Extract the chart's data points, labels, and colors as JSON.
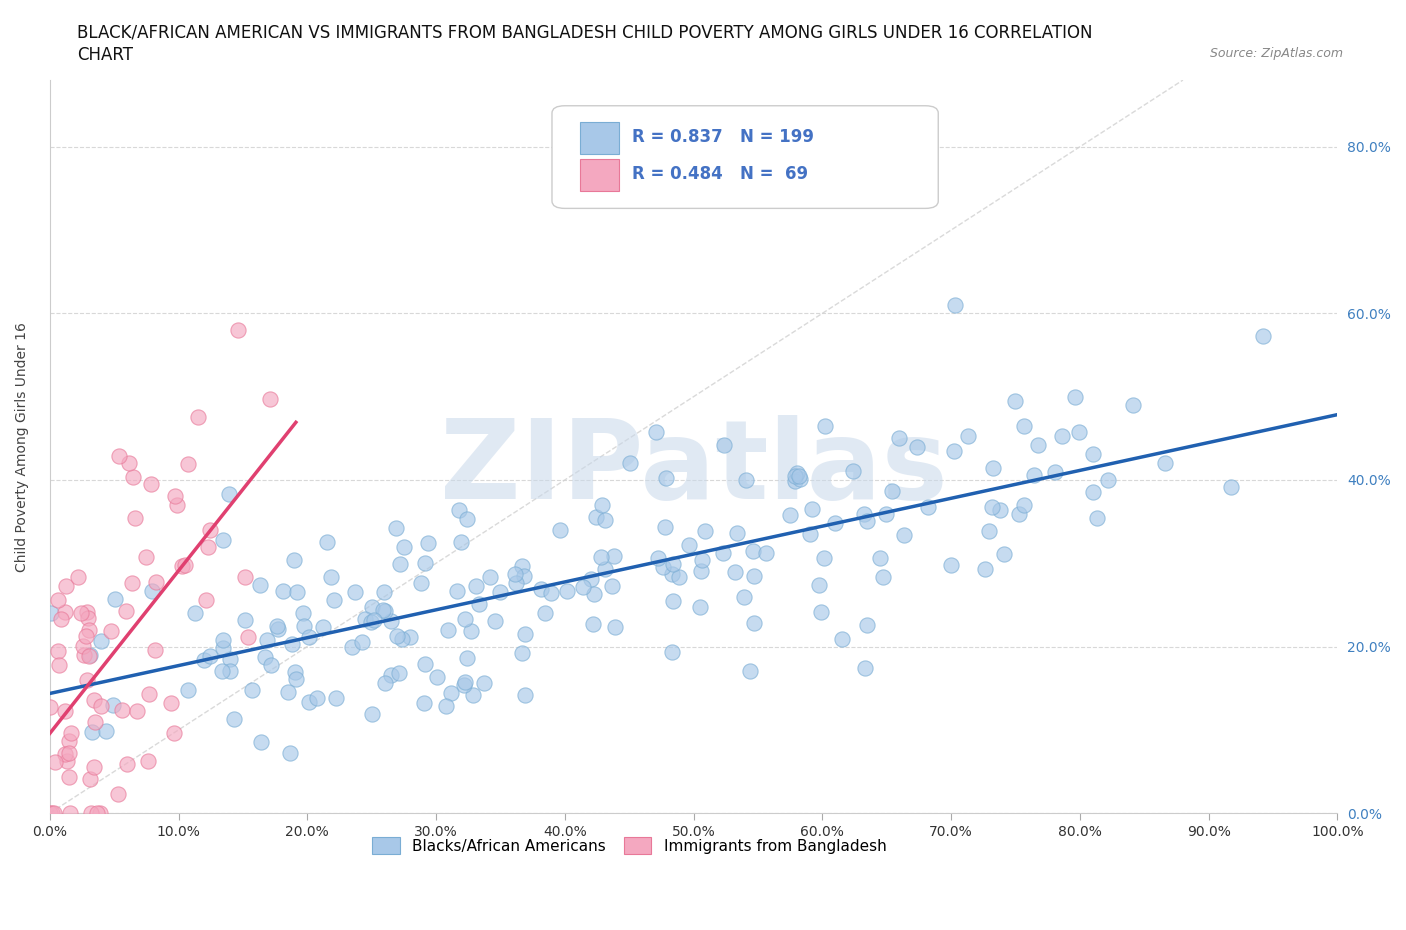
{
  "title_line1": "BLACK/AFRICAN AMERICAN VS IMMIGRANTS FROM BANGLADESH CHILD POVERTY AMONG GIRLS UNDER 16 CORRELATION",
  "title_line2": "CHART",
  "source": "Source: ZipAtlas.com",
  "ylabel": "Child Poverty Among Girls Under 16",
  "xlabel": "",
  "blue_R": 0.837,
  "blue_N": 199,
  "pink_R": 0.484,
  "pink_N": 69,
  "blue_color": "#a8c8e8",
  "pink_color": "#f4a8c0",
  "blue_edge_color": "#7aadd4",
  "pink_edge_color": "#e87898",
  "blue_line_color": "#2060b0",
  "pink_line_color": "#e04070",
  "diagonal_color": "#d0d0d0",
  "watermark_text": "ZIPatlas",
  "watermark_color": "#c8d8ea",
  "xlim": [
    0,
    1.0
  ],
  "ylim": [
    0,
    0.88
  ],
  "xticks": [
    0,
    0.1,
    0.2,
    0.3,
    0.4,
    0.5,
    0.6,
    0.7,
    0.8,
    0.9,
    1.0
  ],
  "yticks": [
    0,
    0.2,
    0.4,
    0.6,
    0.8
  ],
  "background_color": "#ffffff",
  "title_fontsize": 12,
  "axis_fontsize": 10,
  "tick_fontsize": 10,
  "right_tick_color": "#4080c0",
  "legend_fontsize": 12
}
